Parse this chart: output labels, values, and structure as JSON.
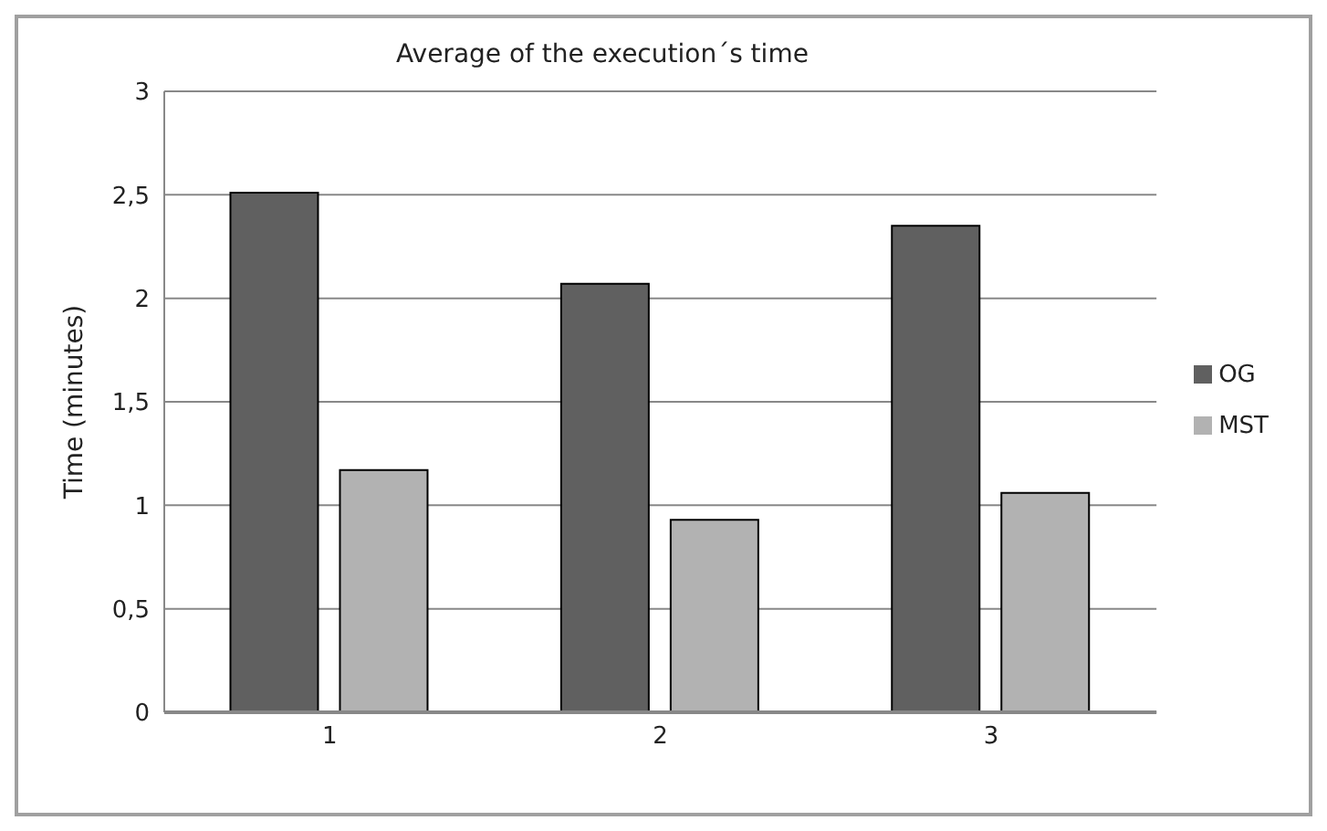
{
  "chart_data": {
    "type": "bar",
    "title": "Average of the execution´s time",
    "ylabel": "Time (minutes)",
    "categories": [
      "1",
      "2",
      "3"
    ],
    "series": [
      {
        "name": "OG",
        "color": "#606060",
        "values": [
          2.51,
          2.07,
          2.35
        ]
      },
      {
        "name": "MST",
        "color": "#b2b2b2",
        "values": [
          1.17,
          0.93,
          1.06
        ]
      }
    ],
    "ylim": [
      0,
      3
    ],
    "yticks": [
      0,
      {
        "value": 0.5,
        "label": "0,5"
      },
      1,
      {
        "value": 1.5,
        "label": "1,5"
      },
      2,
      {
        "value": 2.5,
        "label": "2,5"
      },
      3
    ],
    "grid": "y",
    "legend": "right"
  }
}
